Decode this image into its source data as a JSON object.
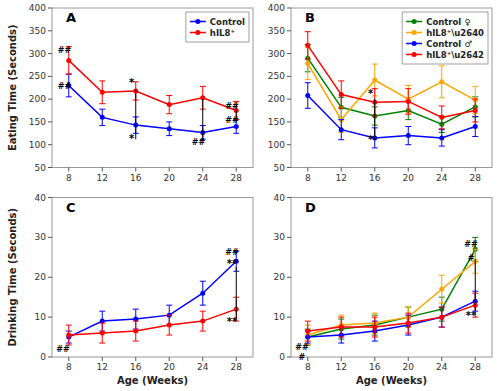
{
  "chart_data": [
    {
      "type": "line",
      "title": "A",
      "ylabel": "Eating Time (Seconds)",
      "x": [
        8,
        12,
        16,
        20,
        24,
        28
      ],
      "xlim": [
        6,
        30
      ],
      "xticks": [
        8,
        12,
        16,
        20,
        24,
        28
      ],
      "ylim": [
        50,
        400
      ],
      "yticks": [
        50,
        100,
        150,
        200,
        250,
        300,
        350,
        400
      ],
      "marker": "circle",
      "legend": "top-right",
      "series": [
        {
          "name": "Control",
          "color": "#0000FF",
          "values": [
            230,
            160,
            143,
            135,
            127,
            140
          ],
          "errors": [
            25,
            18,
            18,
            15,
            15,
            15
          ]
        },
        {
          "name": "hIL8⁺",
          "color": "#FF0000",
          "values": [
            285,
            215,
            218,
            188,
            203,
            175
          ],
          "errors": [
            30,
            25,
            20,
            20,
            25,
            20
          ]
        }
      ],
      "lines": [
        {
          "x": 16,
          "y1": 112,
          "y2": 222
        },
        {
          "x": 24,
          "y1": 108,
          "y2": 200
        },
        {
          "x": 28,
          "y1": 152,
          "y2": 177
        }
      ],
      "annotations": [
        {
          "text": "##",
          "x": 7.5,
          "y": 302
        },
        {
          "text": "##",
          "x": 7.5,
          "y": 222
        },
        {
          "text": "*",
          "x": 15.5,
          "y": 105
        },
        {
          "text": "*",
          "x": 15.5,
          "y": 228
        },
        {
          "text": "##",
          "x": 23.5,
          "y": 100
        },
        {
          "text": "##",
          "x": 27.5,
          "y": 147
        },
        {
          "text": "##",
          "x": 27.5,
          "y": 178
        }
      ]
    },
    {
      "type": "line",
      "title": "B",
      "x": [
        8,
        12,
        16,
        20,
        24,
        28
      ],
      "xlim": [
        6,
        30
      ],
      "xticks": [
        8,
        12,
        16,
        20,
        24,
        28
      ],
      "ylim": [
        50,
        400
      ],
      "yticks": [
        50,
        100,
        150,
        200,
        250,
        300,
        350,
        400
      ],
      "marker": "circle",
      "legend": "top-right",
      "series": [
        {
          "name": "Control ♀",
          "color": "#008000",
          "values": [
            290,
            182,
            163,
            175,
            145,
            183
          ],
          "errors": [
            30,
            22,
            20,
            20,
            18,
            22
          ]
        },
        {
          "name": "hIL8⁺\\u2640",
          "color": "#FFA500",
          "values": [
            278,
            155,
            242,
            200,
            238,
            198
          ],
          "errors": [
            35,
            28,
            35,
            30,
            35,
            30
          ]
        },
        {
          "name": "Control ♂",
          "color": "#0000FF",
          "values": [
            208,
            133,
            115,
            120,
            115,
            140
          ],
          "errors": [
            28,
            22,
            22,
            20,
            18,
            22
          ]
        },
        {
          "name": "hIL8⁺\\u2642",
          "color": "#FF0000",
          "values": [
            318,
            210,
            193,
            195,
            160,
            175
          ],
          "errors": [
            30,
            30,
            30,
            28,
            25,
            25
          ]
        }
      ],
      "lines": [
        {
          "x": 16,
          "y1": 110,
          "y2": 200
        }
      ],
      "annotations": [
        {
          "text": "*",
          "x": 15.5,
          "y": 104
        },
        {
          "text": "*",
          "x": 15.5,
          "y": 204
        }
      ]
    },
    {
      "type": "line",
      "title": "C",
      "ylabel": "Drinking Time (Seconds)",
      "xlabel": "Age (Weeks)",
      "x": [
        8,
        12,
        16,
        20,
        24,
        28
      ],
      "xlim": [
        6,
        30
      ],
      "xticks": [
        8,
        12,
        16,
        20,
        24,
        28
      ],
      "ylim": [
        0,
        40
      ],
      "yticks": [
        0,
        10,
        20,
        30,
        40
      ],
      "marker": "circle",
      "series": [
        {
          "color": "#0000FF",
          "values": [
            5.0,
            9.0,
            9.5,
            10.5,
            16.0,
            24.0
          ],
          "errors": [
            1.5,
            2.5,
            2.5,
            2.5,
            3.0,
            2.5
          ]
        },
        {
          "color": "#FF0000",
          "values": [
            5.5,
            6.0,
            6.5,
            8.0,
            9.0,
            12.0
          ],
          "errors": [
            2.5,
            2.5,
            2.5,
            2.5,
            2.5,
            3.0
          ]
        }
      ],
      "lines": [
        {
          "x": 28,
          "y1": 9.5,
          "y2": 22.5
        }
      ],
      "annotations": [
        {
          "text": "##",
          "x": 7.3,
          "y": 1.2
        },
        {
          "text": "##",
          "x": 27.5,
          "y": 25.5
        },
        {
          "text": "**",
          "x": 27.5,
          "y": 22.5
        },
        {
          "text": "**",
          "x": 27.5,
          "y": 8.0
        }
      ]
    },
    {
      "type": "line",
      "title": "D",
      "xlabel": "Age (Weeks)",
      "x": [
        8,
        12,
        16,
        20,
        24,
        28
      ],
      "xlim": [
        6,
        30
      ],
      "xticks": [
        8,
        12,
        16,
        20,
        24,
        28
      ],
      "ylim": [
        0,
        40
      ],
      "yticks": [
        0,
        10,
        20,
        30,
        40
      ],
      "marker": "circle",
      "series": [
        {
          "color": "#008000",
          "values": [
            5.0,
            7.0,
            8.0,
            10.0,
            12.0,
            27.0
          ],
          "errors": [
            2.0,
            2.5,
            2.5,
            2.5,
            3.0,
            3.0
          ]
        },
        {
          "color": "#FFA500",
          "values": [
            5.5,
            8.0,
            8.5,
            10.0,
            17.0,
            24.0
          ],
          "errors": [
            2.5,
            2.5,
            2.5,
            2.5,
            3.5,
            3.0
          ]
        },
        {
          "color": "#0000FF",
          "values": [
            5.0,
            5.5,
            6.5,
            8.0,
            10.0,
            14.0
          ],
          "errors": [
            1.5,
            2.0,
            2.5,
            2.5,
            2.5,
            2.5
          ]
        },
        {
          "color": "#FF0000",
          "values": [
            6.5,
            7.5,
            7.5,
            8.5,
            10.0,
            13.0
          ],
          "errors": [
            2.5,
            2.5,
            2.5,
            2.5,
            2.5,
            3.0
          ]
        }
      ],
      "lines": [
        {
          "x": 28,
          "y1": 11.5,
          "y2": 24.5
        }
      ],
      "annotations": [
        {
          "text": "##",
          "x": 7.3,
          "y": 1.8
        },
        {
          "text": "#",
          "x": 7.3,
          "y": -0.8
        },
        {
          "text": "##",
          "x": 27.5,
          "y": 27.5
        },
        {
          "text": "#",
          "x": 27.5,
          "y": 24.2
        },
        {
          "text": "**",
          "x": 27.5,
          "y": 9.5
        }
      ]
    }
  ]
}
